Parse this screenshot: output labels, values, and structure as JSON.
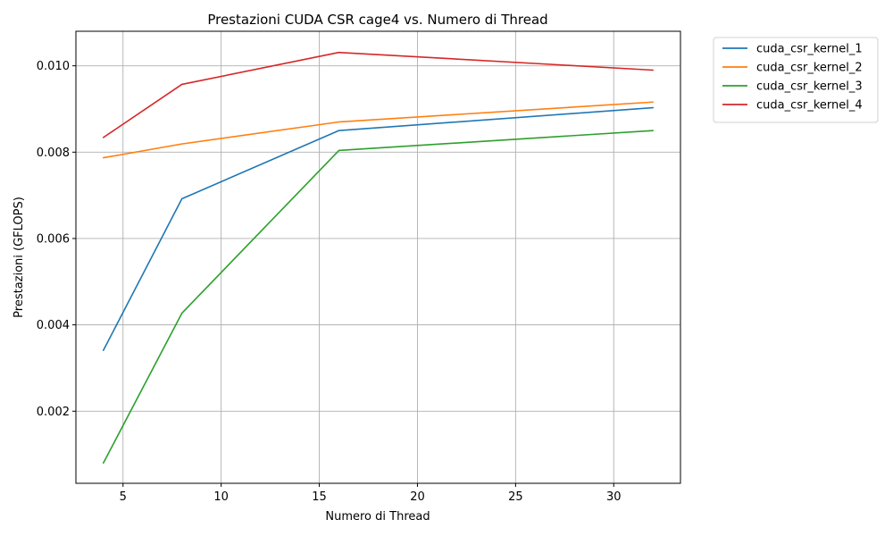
{
  "chart_data": {
    "type": "line",
    "title": "Prestazioni CUDA CSR cage4 vs. Numero di Thread",
    "xlabel": "Numero di Thread",
    "ylabel": "Prestazioni (GFLOPS)",
    "x": [
      4,
      8,
      16,
      32
    ],
    "xlim": [
      2.6,
      33.4
    ],
    "ylim": [
      0.00033,
      0.0108
    ],
    "xticks": [
      5,
      10,
      15,
      20,
      25,
      30
    ],
    "xtick_labels": [
      "5",
      "10",
      "15",
      "20",
      "25",
      "30"
    ],
    "yticks": [
      0.002,
      0.004,
      0.006,
      0.008,
      0.01
    ],
    "ytick_labels": [
      "0.002",
      "0.004",
      "0.006",
      "0.008",
      "0.010"
    ],
    "grid": true,
    "legend_position": "outside-top-right",
    "series": [
      {
        "name": "cuda_csr_kernel_1",
        "color": "#1f77b4",
        "values": [
          0.00341,
          0.00692,
          0.0085,
          0.00903
        ]
      },
      {
        "name": "cuda_csr_kernel_2",
        "color": "#ff7f0e",
        "values": [
          0.00787,
          0.00819,
          0.0087,
          0.00916
        ]
      },
      {
        "name": "cuda_csr_kernel_3",
        "color": "#2ca02c",
        "values": [
          0.0008,
          0.00427,
          0.00804,
          0.0085
        ]
      },
      {
        "name": "cuda_csr_kernel_4",
        "color": "#d62728",
        "values": [
          0.00834,
          0.00957,
          0.01031,
          0.0099
        ]
      }
    ]
  }
}
